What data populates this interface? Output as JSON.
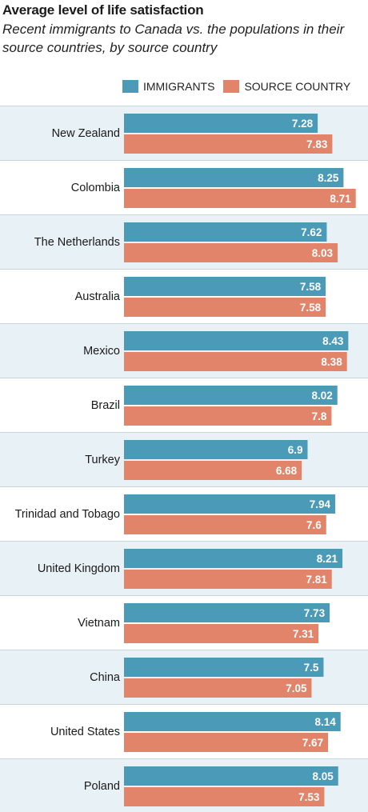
{
  "title": "Average level of life satisfaction",
  "subtitle": "Recent immigrants to Canada vs. the populations in their source countries, by source country",
  "colors": {
    "immigrants": "#4b9ab8",
    "source": "#e2846a",
    "band_shaded": "#e8f1f6",
    "band_plain": "#ffffff",
    "divider": "#c9d3d9",
    "value_text": "#ffffff",
    "label_text": "#1a1a1a"
  },
  "legend": [
    {
      "label": "IMMIGRANTS",
      "color_key": "immigrants"
    },
    {
      "label": "SOURCE COUNTRY",
      "color_key": "source"
    }
  ],
  "chart_data": {
    "type": "bar",
    "orientation": "horizontal",
    "categories": [
      "New Zealand",
      "Colombia",
      "The Netherlands",
      "Australia",
      "Mexico",
      "Brazil",
      "Turkey",
      "Trinidad and Tobago",
      "United Kingdom",
      "Vietnam",
      "China",
      "United States",
      "Poland"
    ],
    "series": [
      {
        "name": "IMMIGRANTS",
        "values": [
          7.28,
          8.25,
          7.62,
          7.58,
          8.43,
          8.02,
          6.9,
          7.94,
          8.21,
          7.73,
          7.5,
          8.14,
          8.05
        ],
        "labels": [
          "7.28",
          "8.25",
          "7.62",
          "7.58",
          "8.43",
          "8.02",
          "6.9",
          "7.94",
          "8.21",
          "7.73",
          "7.5",
          "8.14",
          "8.05"
        ]
      },
      {
        "name": "SOURCE COUNTRY",
        "values": [
          7.83,
          8.71,
          8.03,
          7.58,
          8.38,
          7.8,
          6.68,
          7.6,
          7.81,
          7.31,
          7.05,
          7.67,
          7.53
        ],
        "labels": [
          "7.83",
          "8.71",
          "8.03",
          "7.58",
          "8.38",
          "7.8",
          "6.68",
          "7.6",
          "7.81",
          "7.31",
          "7.05",
          "7.67",
          "7.53"
        ]
      }
    ],
    "xlim": [
      0,
      8.9
    ],
    "grid": false,
    "legend_position": "top"
  }
}
